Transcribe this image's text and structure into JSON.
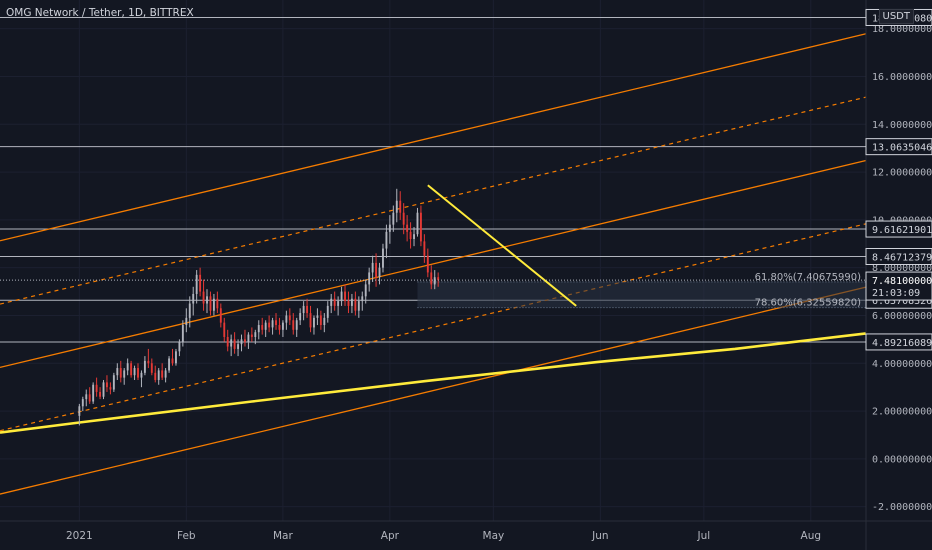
{
  "header": {
    "title": "OMG Network / Tether, 1D, BITTREX",
    "currency": "USDT"
  },
  "colors": {
    "background": "#131722",
    "bull": "#b2b5be",
    "bear": "#e53935",
    "orange": "#f57c00",
    "yellow": "#ffeb3b",
    "hline": "#b2b5be",
    "text": "#d1d4dc"
  },
  "chart_data": {
    "type": "candlestick",
    "ylim": [
      -2.6,
      19.2
    ],
    "yticks": [
      "-2.00000000",
      "0.00000000",
      "2.00000000",
      "4.00000000",
      "6.00000000",
      "8.00000000",
      "10.00000000",
      "12.00000000",
      "14.00000000",
      "16.00000000",
      "18.00000000"
    ],
    "ytick_values": [
      -2,
      0,
      2,
      4,
      6,
      8,
      10,
      12,
      14,
      16,
      18
    ],
    "xticks": [
      "2021",
      "Feb",
      "Mar",
      "Apr",
      "May",
      "Jun",
      "Jul",
      "Aug"
    ],
    "xtick_days": [
      0,
      31,
      59,
      90,
      120,
      151,
      181,
      212
    ],
    "x_range_days": [
      -23,
      228
    ],
    "horizontal_levels": [
      {
        "value": 18.46850809,
        "label": "18.46850809"
      },
      {
        "value": 13.06350466,
        "label": "13.06350466"
      },
      {
        "value": 9.61621901,
        "label": "9.61621901"
      },
      {
        "value": 8.46712379,
        "label": "8.46712379"
      },
      {
        "value": 6.63708326,
        "label": "6.63708326"
      },
      {
        "value": 4.89216089,
        "label": "4.89216089"
      }
    ],
    "price_label": {
      "value": 7.481,
      "label": "7.48100000",
      "countdown": "21:03:09"
    },
    "fib_levels": [
      {
        "value": 7.4067599,
        "label": "61.80%(7.40675990)"
      },
      {
        "value": 6.3255982,
        "label": "78.60%(6.32559820)"
      }
    ],
    "channel": {
      "slope_per_day": 0.0345,
      "solid_offsets": [
        -2.2,
        3.1,
        8.4
      ],
      "dashed_offsets": [
        0.45,
        5.75
      ]
    },
    "trendlines": [
      {
        "from": [
          101,
          11.45
        ],
        "to": [
          144,
          6.4
        ]
      }
    ],
    "support_curve": [
      [
        -23,
        1.1
      ],
      [
        0,
        1.52
      ],
      [
        50,
        2.4
      ],
      [
        100,
        3.25
      ],
      [
        150,
        4.05
      ],
      [
        190,
        4.6
      ],
      [
        228,
        5.25
      ]
    ],
    "candles": [
      [
        0,
        1.8,
        2.3,
        1.4,
        2.2
      ],
      [
        1,
        2.2,
        2.6,
        2.0,
        2.5
      ],
      [
        2,
        2.5,
        2.9,
        2.2,
        2.7
      ],
      [
        3,
        2.7,
        3.0,
        2.3,
        2.4
      ],
      [
        4,
        2.4,
        3.2,
        2.3,
        3.1
      ],
      [
        5,
        3.1,
        3.4,
        2.6,
        2.8
      ],
      [
        6,
        2.8,
        3.0,
        2.5,
        2.6
      ],
      [
        7,
        2.6,
        3.3,
        2.5,
        3.2
      ],
      [
        8,
        3.2,
        3.5,
        2.8,
        3.0
      ],
      [
        9,
        3.0,
        3.2,
        2.7,
        2.9
      ],
      [
        10,
        2.9,
        3.6,
        2.8,
        3.5
      ],
      [
        11,
        3.5,
        4.0,
        3.3,
        3.8
      ],
      [
        12,
        3.8,
        4.1,
        3.2,
        3.4
      ],
      [
        13,
        3.4,
        3.8,
        3.1,
        3.7
      ],
      [
        14,
        3.7,
        4.2,
        3.5,
        4.0
      ],
      [
        15,
        4.0,
        4.1,
        3.4,
        3.5
      ],
      [
        16,
        3.5,
        3.9,
        3.3,
        3.8
      ],
      [
        17,
        3.8,
        4.0,
        3.3,
        3.4
      ],
      [
        18,
        3.4,
        3.7,
        3.0,
        3.6
      ],
      [
        19,
        3.6,
        4.3,
        3.5,
        4.1
      ],
      [
        20,
        4.1,
        4.6,
        3.8,
        4.0
      ],
      [
        21,
        4.0,
        4.2,
        3.5,
        3.6
      ],
      [
        22,
        3.6,
        3.9,
        3.2,
        3.3
      ],
      [
        23,
        3.3,
        3.8,
        3.1,
        3.7
      ],
      [
        24,
        3.7,
        4.0,
        3.3,
        3.4
      ],
      [
        25,
        3.4,
        3.8,
        3.2,
        3.7
      ],
      [
        26,
        3.7,
        4.3,
        3.6,
        4.2
      ],
      [
        27,
        4.2,
        4.6,
        3.9,
        4.0
      ],
      [
        28,
        4.0,
        4.6,
        3.9,
        4.5
      ],
      [
        29,
        4.5,
        5.0,
        4.3,
        4.9
      ],
      [
        30,
        4.9,
        5.8,
        4.7,
        5.6
      ],
      [
        31,
        5.6,
        6.3,
        5.3,
        5.9
      ],
      [
        32,
        5.9,
        6.8,
        5.5,
        6.5
      ],
      [
        33,
        6.5,
        7.2,
        6.0,
        6.9
      ],
      [
        34,
        6.9,
        7.9,
        6.5,
        7.7
      ],
      [
        35,
        7.7,
        8.0,
        6.8,
        7.0
      ],
      [
        36,
        7.0,
        7.5,
        6.2,
        6.5
      ],
      [
        37,
        6.5,
        7.1,
        6.1,
        6.8
      ],
      [
        38,
        6.8,
        7.0,
        6.0,
        6.2
      ],
      [
        39,
        6.2,
        6.9,
        6.0,
        6.7
      ],
      [
        40,
        6.7,
        7.0,
        6.1,
        6.3
      ],
      [
        41,
        6.3,
        6.5,
        5.5,
        5.7
      ],
      [
        42,
        5.7,
        5.9,
        4.9,
        5.1
      ],
      [
        43,
        5.1,
        5.4,
        4.5,
        4.7
      ],
      [
        44,
        4.7,
        5.2,
        4.3,
        5.0
      ],
      [
        45,
        5.0,
        5.3,
        4.4,
        4.6
      ],
      [
        46,
        4.6,
        5.0,
        4.3,
        4.8
      ],
      [
        47,
        4.8,
        5.2,
        4.5,
        5.0
      ],
      [
        48,
        5.0,
        5.4,
        4.7,
        4.9
      ],
      [
        49,
        4.9,
        5.3,
        4.6,
        5.2
      ],
      [
        50,
        5.2,
        5.5,
        4.9,
        5.1
      ],
      [
        51,
        5.1,
        5.4,
        4.8,
        5.3
      ],
      [
        52,
        5.3,
        5.8,
        5.0,
        5.6
      ],
      [
        53,
        5.6,
        5.9,
        5.2,
        5.4
      ],
      [
        54,
        5.4,
        5.8,
        5.1,
        5.7
      ],
      [
        55,
        5.7,
        6.0,
        5.3,
        5.5
      ],
      [
        56,
        5.5,
        5.9,
        5.2,
        5.8
      ],
      [
        57,
        5.8,
        6.1,
        5.4,
        5.6
      ],
      [
        58,
        5.6,
        5.9,
        5.2,
        5.4
      ],
      [
        59,
        5.4,
        5.8,
        5.1,
        5.7
      ],
      [
        60,
        5.7,
        6.2,
        5.4,
        6.0
      ],
      [
        61,
        6.0,
        6.3,
        5.6,
        5.8
      ],
      [
        62,
        5.8,
        6.1,
        5.2,
        5.4
      ],
      [
        63,
        5.4,
        5.9,
        5.1,
        5.8
      ],
      [
        64,
        5.8,
        6.3,
        5.6,
        6.1
      ],
      [
        65,
        6.1,
        6.6,
        5.8,
        6.4
      ],
      [
        66,
        6.4,
        6.7,
        5.9,
        6.1
      ],
      [
        67,
        6.1,
        6.4,
        5.3,
        5.5
      ],
      [
        68,
        5.5,
        6.0,
        5.2,
        5.9
      ],
      [
        69,
        5.9,
        6.3,
        5.6,
        6.0
      ],
      [
        70,
        6.0,
        6.2,
        5.4,
        5.6
      ],
      [
        71,
        5.6,
        6.1,
        5.3,
        5.9
      ],
      [
        72,
        5.9,
        6.6,
        5.7,
        6.4
      ],
      [
        73,
        6.4,
        6.9,
        6.1,
        6.7
      ],
      [
        74,
        6.7,
        7.0,
        6.2,
        6.4
      ],
      [
        75,
        6.4,
        6.8,
        6.0,
        6.6
      ],
      [
        76,
        6.6,
        7.2,
        6.4,
        7.0
      ],
      [
        77,
        7.0,
        7.3,
        6.4,
        6.6
      ],
      [
        78,
        6.6,
        7.0,
        6.1,
        6.4
      ],
      [
        79,
        6.4,
        6.9,
        6.1,
        6.7
      ],
      [
        80,
        6.7,
        7.0,
        6.0,
        6.2
      ],
      [
        81,
        6.2,
        6.8,
        5.9,
        6.6
      ],
      [
        82,
        6.6,
        7.0,
        6.2,
        6.8
      ],
      [
        83,
        6.8,
        7.5,
        6.5,
        7.3
      ],
      [
        84,
        7.3,
        8.0,
        7.0,
        7.8
      ],
      [
        85,
        7.8,
        8.5,
        7.4,
        8.2
      ],
      [
        86,
        8.2,
        8.6,
        7.2,
        7.6
      ],
      [
        87,
        7.6,
        8.2,
        7.3,
        8.0
      ],
      [
        88,
        8.0,
        9.0,
        7.8,
        8.8
      ],
      [
        89,
        8.8,
        9.8,
        8.4,
        9.5
      ],
      [
        90,
        9.5,
        10.2,
        9.0,
        9.8
      ],
      [
        91,
        9.8,
        10.6,
        9.5,
        10.3
      ],
      [
        92,
        10.3,
        11.3,
        9.9,
        10.8
      ],
      [
        93,
        10.8,
        11.2,
        10.0,
        10.3
      ],
      [
        94,
        10.3,
        10.7,
        9.4,
        9.8
      ],
      [
        95,
        9.8,
        10.2,
        9.1,
        9.5
      ],
      [
        96,
        9.5,
        9.9,
        8.8,
        9.2
      ],
      [
        97,
        9.2,
        9.7,
        8.9,
        9.4
      ],
      [
        98,
        9.4,
        10.5,
        9.3,
        10.3
      ],
      [
        99,
        10.3,
        10.6,
        8.9,
        9.1
      ],
      [
        100,
        9.1,
        9.4,
        8.2,
        8.5
      ],
      [
        101,
        8.5,
        8.8,
        7.6,
        7.8
      ],
      [
        102,
        7.8,
        8.1,
        7.1,
        7.3
      ],
      [
        103,
        7.3,
        7.9,
        7.1,
        7.6
      ],
      [
        104,
        7.6,
        7.8,
        7.2,
        7.48
      ]
    ]
  }
}
